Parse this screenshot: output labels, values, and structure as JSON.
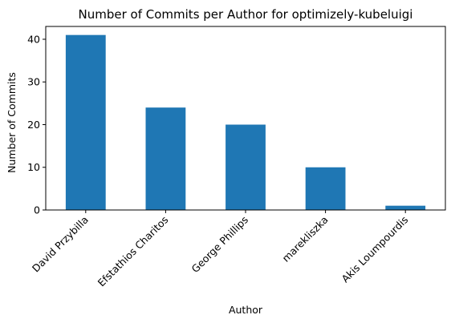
{
  "chart_data": {
    "type": "bar",
    "title": "Number of Commits per Author for optimizely-kubeluigi",
    "xlabel": "Author",
    "ylabel": "Number of Commits",
    "categories": [
      "David Przybilla",
      "Efstathios Charitos",
      "George Phillips",
      "marekliszka",
      "Akis Loumpourdis"
    ],
    "values": [
      41,
      24,
      20,
      10,
      1
    ],
    "ylim": [
      0,
      43
    ],
    "yticks": [
      0,
      10,
      20,
      30,
      40
    ],
    "grid": false,
    "legend": "none",
    "bar_color": "#1f77b4"
  }
}
